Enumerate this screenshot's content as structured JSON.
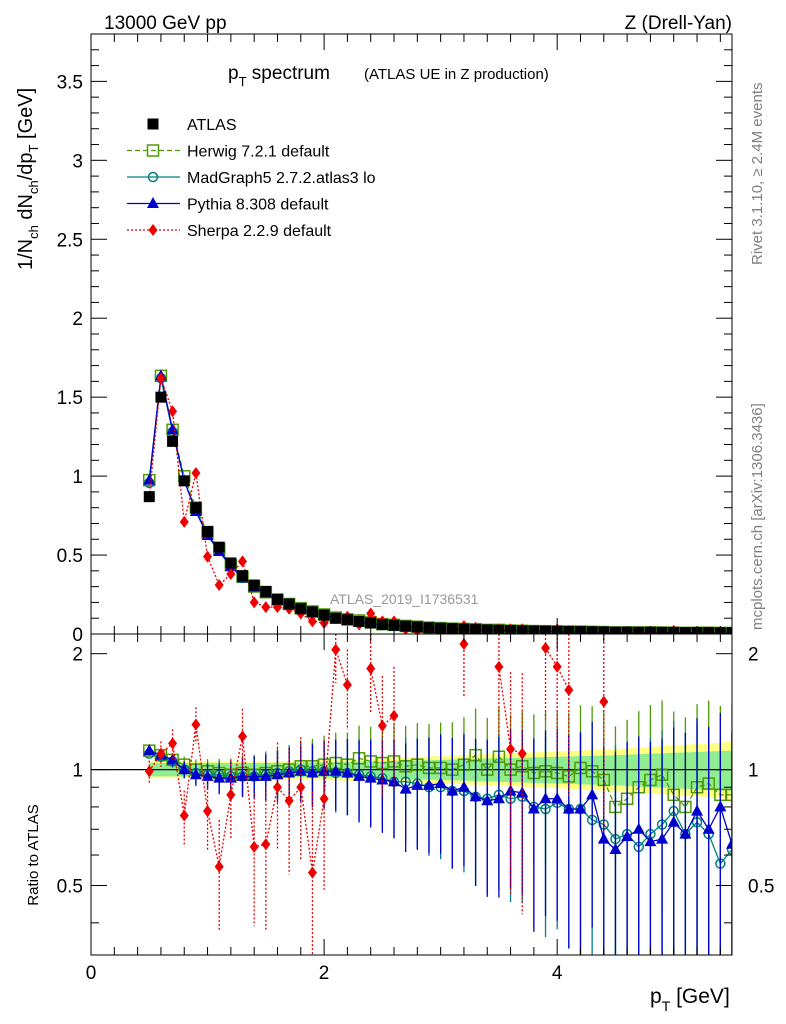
{
  "header": {
    "energy": "13000 GeV pp",
    "process": "Z (Drell-Yan)"
  },
  "side": {
    "rivet": "Rivet 3.1.10, ≥ 2.4M events",
    "mcplots": "mcplots.cern.ch [arXiv:1306.3436]"
  },
  "chart_data": {
    "type": "line",
    "title": "p_T spectrum",
    "title_main": "p",
    "title_sub": "T",
    "title_rest": " spectrum",
    "subtitle": "(ATLAS UE in Z production)",
    "analysis_label": "ATLAS_2019_I1736531",
    "xlabel": "p_T [GeV]",
    "ylabel": "1/N_ch dN_ch/dp_T [GeV]",
    "ratio_ylabel": "Ratio to ATLAS",
    "xlim": [
      0,
      5.5
    ],
    "ylim": [
      0,
      3.8
    ],
    "ratio_ylim": [
      0.33,
      2.25
    ],
    "x_ticks": [
      "0",
      "2",
      "4"
    ],
    "y_ticks": [
      "0",
      "0.5",
      "1",
      "1.5",
      "2",
      "2.5",
      "3",
      "3.5"
    ],
    "ratio_ticks": [
      "0.5",
      "1",
      "2"
    ],
    "legend": {
      "position": "top-left",
      "entries": [
        "ATLAS",
        "Herwig 7.2.1 default",
        "MadGraph5 2.7.2.atlas3 lo",
        "Pythia 8.308 default",
        "Sherpa 2.2.9 default"
      ]
    },
    "x": [
      0.5,
      0.6,
      0.7,
      0.8,
      0.9,
      1.0,
      1.1,
      1.2,
      1.3,
      1.4,
      1.5,
      1.6,
      1.7,
      1.8,
      1.9,
      2.0,
      2.1,
      2.2,
      2.3,
      2.4,
      2.5,
      2.6,
      2.7,
      2.8,
      2.9,
      3.0,
      3.1,
      3.2,
      3.3,
      3.4,
      3.5,
      3.6,
      3.7,
      3.8,
      3.9,
      4.0,
      4.1,
      4.2,
      4.3,
      4.4,
      4.5,
      4.6,
      4.7,
      4.8,
      4.9,
      5.0,
      5.1,
      5.2,
      5.3,
      5.4,
      5.5
    ],
    "data_values": [
      0.87,
      1.5,
      1.22,
      0.97,
      0.8,
      0.65,
      0.55,
      0.45,
      0.37,
      0.31,
      0.27,
      0.22,
      0.19,
      0.16,
      0.14,
      0.12,
      0.1,
      0.09,
      0.08,
      0.07,
      0.06,
      0.055,
      0.05,
      0.045,
      0.04,
      0.037,
      0.034,
      0.031,
      0.028,
      0.026,
      0.024,
      0.022,
      0.02,
      0.019,
      0.018,
      0.017,
      0.016,
      0.015,
      0.014,
      0.013,
      0.012,
      0.012,
      0.011,
      0.011,
      0.01,
      0.01,
      0.009,
      0.009,
      0.009,
      0.008,
      0.008
    ],
    "band_inner": [
      [
        0.5,
        0.96,
        1.04
      ],
      [
        1.5,
        0.96,
        1.04
      ],
      [
        2.5,
        0.95,
        1.05
      ],
      [
        3.5,
        0.93,
        1.07
      ],
      [
        4.5,
        0.91,
        1.09
      ],
      [
        5.5,
        0.88,
        1.12
      ]
    ],
    "band_outer": [
      [
        0.5,
        0.95,
        1.05
      ],
      [
        1.5,
        0.95,
        1.05
      ],
      [
        2.5,
        0.93,
        1.07
      ],
      [
        3.5,
        0.91,
        1.1
      ],
      [
        4.5,
        0.88,
        1.13
      ],
      [
        5.5,
        0.84,
        1.18
      ]
    ],
    "series": [
      {
        "name": "Herwig 7.2.1 default",
        "color": "#4e9a06",
        "marker": "open-square",
        "style": "dashed",
        "ratio": [
          1.12,
          1.09,
          1.06,
          1.03,
          1.0,
          0.99,
          0.98,
          0.97,
          0.98,
          0.97,
          0.98,
          0.99,
          1.0,
          1.02,
          1.02,
          1.03,
          1.04,
          1.03,
          1.07,
          1.05,
          1.04,
          1.05,
          1.02,
          1.03,
          1.01,
          1.01,
          1.0,
          1.03,
          1.09,
          1.0,
          1.08,
          1.0,
          1.02,
          0.98,
          0.99,
          0.98,
          0.96,
          1.01,
          0.99,
          0.94,
          0.8,
          0.84,
          0.9,
          0.94,
          0.97,
          0.86,
          0.8,
          0.9,
          0.92,
          0.86,
          0.86
        ]
      },
      {
        "name": "MadGraph5 2.7.2.atlas3 lo",
        "color": "#008080",
        "marker": "open-circle",
        "style": "solid",
        "ratio": [
          1.1,
          1.08,
          1.05,
          1.0,
          0.98,
          0.97,
          0.97,
          0.96,
          0.96,
          0.96,
          0.97,
          0.98,
          0.99,
          1.0,
          0.99,
          0.99,
          0.98,
          0.98,
          0.97,
          0.96,
          0.95,
          0.93,
          0.93,
          0.92,
          0.9,
          0.9,
          0.88,
          0.88,
          0.85,
          0.84,
          0.86,
          0.84,
          0.85,
          0.8,
          0.79,
          0.82,
          0.79,
          0.79,
          0.74,
          0.72,
          0.66,
          0.68,
          0.63,
          0.68,
          0.72,
          0.78,
          0.68,
          0.73,
          0.68,
          0.57,
          0.62
        ]
      },
      {
        "name": "Pythia 8.308 default",
        "color": "#0000cc",
        "marker": "triangle",
        "style": "solid",
        "ratio": [
          1.12,
          1.09,
          1.06,
          1.0,
          0.97,
          0.96,
          0.95,
          0.95,
          0.96,
          0.96,
          0.96,
          0.97,
          0.98,
          0.99,
          0.98,
          0.99,
          0.99,
          0.98,
          0.96,
          0.95,
          0.94,
          0.93,
          0.89,
          0.91,
          0.91,
          0.92,
          0.88,
          0.9,
          0.85,
          0.83,
          0.84,
          0.88,
          0.87,
          0.79,
          0.84,
          0.84,
          0.79,
          0.79,
          0.86,
          0.66,
          0.62,
          0.67,
          0.7,
          0.65,
          0.66,
          0.73,
          0.68,
          0.78,
          0.7,
          0.8,
          0.64
        ]
      },
      {
        "name": "Sherpa 2.2.9 default",
        "color": "#ee0000",
        "marker": "diamond",
        "style": "dotted",
        "values": [
          0.87,
          1.62,
          1.41,
          0.71,
          1.02,
          0.49,
          0.31,
          0.38,
          0.46,
          0.2,
          0.17,
          0.17,
          0.16,
          0.13,
          0.08,
          0.07,
          0.1,
          0.11,
          0.06,
          0.13,
          0.08,
          0.08,
          0.03,
          0.02,
          0.02,
          0.02,
          0.02,
          0.05,
          0.04,
          0.02,
          0.03,
          0.03,
          0.03,
          0.02,
          0.02,
          0.03,
          0.02,
          0.01,
          0.01,
          0.01,
          0.01,
          0.01,
          0.01,
          0.01,
          0.01,
          0.02,
          0.01,
          0.01,
          0.01,
          0.01,
          0.01
        ],
        "ratio": [
          0.99,
          1.1,
          1.17,
          0.76,
          1.31,
          0.78,
          0.56,
          0.86,
          1.22,
          0.63,
          0.64,
          0.9,
          0.83,
          0.9,
          0.54,
          0.84,
          2.05,
          1.66,
          null,
          1.83,
          1.3,
          1.38,
          null,
          null,
          null,
          null,
          null,
          2.12,
          null,
          null,
          1.85,
          1.13,
          1.1,
          null,
          2.07,
          1.85,
          1.61,
          null,
          null,
          1.5,
          null,
          null,
          null,
          null,
          null,
          null,
          null,
          null,
          null,
          null,
          null
        ]
      }
    ]
  }
}
